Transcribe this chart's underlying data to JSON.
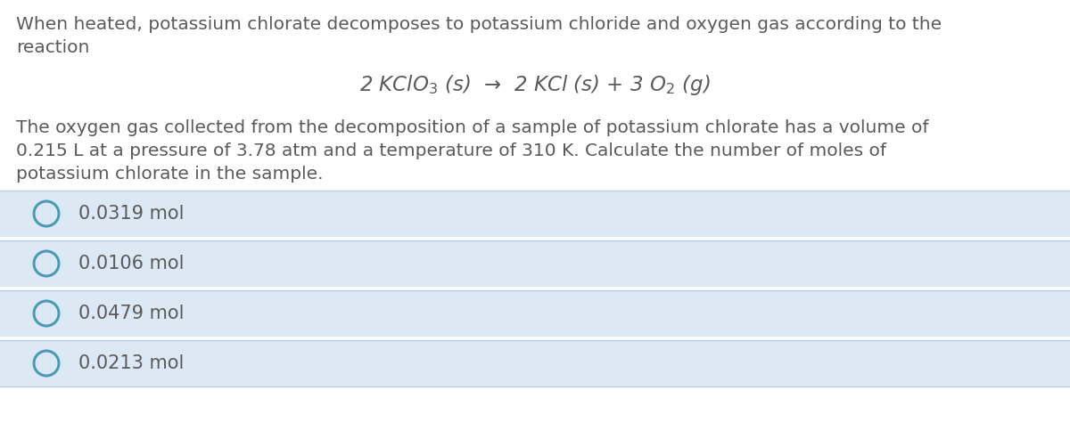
{
  "background_color": "#ffffff",
  "text_color": "#5a5a5a",
  "intro_line1": "When heated, potassium chlorate decomposes to potassium chloride and oxygen gas according to the",
  "intro_line2": "reaction",
  "equation": "2 KClO$_3$ ($s$)  →  2 KCl ($s$) + 3 O$_2$ ($g$)",
  "body_line1": "The oxygen gas collected from the decomposition of a sample of potassium chlorate has a volume of",
  "body_line2": "0.215 L at a pressure of 3.78 atm and a temperature of 310 K. Calculate the number of moles of",
  "body_line3": "potassium chlorate in the sample.",
  "choices": [
    "0.0319 mol",
    "0.0106 mol",
    "0.0479 mol",
    "0.0213 mol"
  ],
  "choice_bg_color": "#dce9f5",
  "choice_border_color": "#b8cfe0",
  "circle_edge_color": "#4a9ab5",
  "font_size_body": 14.5,
  "font_size_equation": 16.5,
  "font_size_choices": 15.0,
  "fig_width": 12.0,
  "fig_height": 4.93,
  "dpi": 100
}
